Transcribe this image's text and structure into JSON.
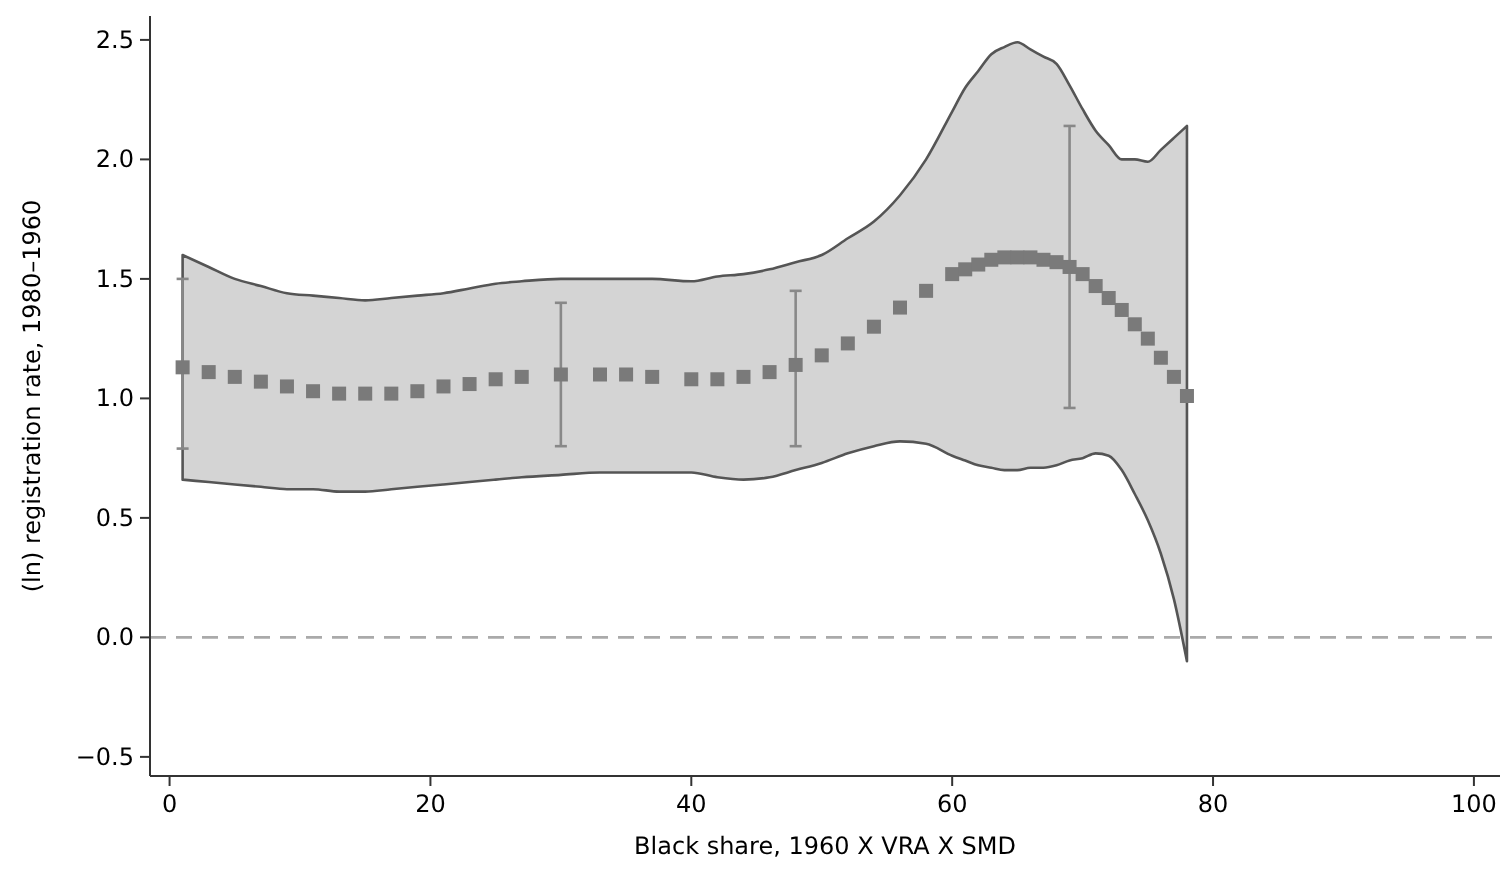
{
  "chart_data": {
    "type": "scatter",
    "xlabel": "Black share, 1960 X VRA X SMD",
    "ylabel": "(ln) registration rate, 1980–1960",
    "xlim": [
      -1.5,
      102
    ],
    "xticks": [
      0,
      20,
      40,
      60,
      80,
      100
    ],
    "ylim": [
      -0.58,
      2.6
    ],
    "yticks": [
      -0.5,
      {
        "value": 0,
        "label": "0.0"
      },
      0.5,
      {
        "value": 1,
        "label": "1.0"
      },
      1.5,
      {
        "value": 2,
        "label": "2.0"
      },
      2.5
    ],
    "series": [
      {
        "marker": "square",
        "color": "#7a7a7a",
        "x": [
          1,
          3,
          5,
          7,
          9,
          11,
          13,
          15,
          17,
          19,
          21,
          23,
          25,
          27,
          30,
          33,
          35,
          37,
          40,
          42,
          44,
          46,
          48,
          50,
          52,
          54,
          56,
          58,
          60,
          61,
          62,
          63,
          64,
          65,
          66,
          67,
          68,
          69,
          70,
          71,
          72,
          73,
          74,
          75,
          76,
          77,
          78
        ],
        "values": [
          1.13,
          1.11,
          1.09,
          1.07,
          1.05,
          1.03,
          1.02,
          1.02,
          1.02,
          1.03,
          1.05,
          1.06,
          1.08,
          1.09,
          1.1,
          1.1,
          1.1,
          1.09,
          1.08,
          1.08,
          1.09,
          1.11,
          1.14,
          1.18,
          1.23,
          1.3,
          1.38,
          1.45,
          1.52,
          1.54,
          1.56,
          1.58,
          1.59,
          1.59,
          1.59,
          1.58,
          1.57,
          1.55,
          1.52,
          1.47,
          1.42,
          1.37,
          1.31,
          1.25,
          1.17,
          1.09,
          1.01
        ],
        "lower": [
          0.66,
          0.65,
          0.64,
          0.63,
          0.62,
          0.62,
          0.61,
          0.61,
          0.62,
          0.63,
          0.64,
          0.65,
          0.66,
          0.67,
          0.68,
          0.69,
          0.69,
          0.69,
          0.69,
          0.67,
          0.66,
          0.67,
          0.7,
          0.73,
          0.77,
          0.8,
          0.82,
          0.81,
          0.76,
          0.74,
          0.72,
          0.71,
          0.7,
          0.7,
          0.71,
          0.71,
          0.72,
          0.74,
          0.75,
          0.77,
          0.76,
          0.7,
          0.6,
          0.49,
          0.35,
          0.16,
          -0.1
        ],
        "upper": [
          1.6,
          1.55,
          1.5,
          1.47,
          1.44,
          1.43,
          1.42,
          1.41,
          1.42,
          1.43,
          1.44,
          1.46,
          1.48,
          1.49,
          1.5,
          1.5,
          1.5,
          1.5,
          1.49,
          1.51,
          1.52,
          1.54,
          1.57,
          1.6,
          1.67,
          1.74,
          1.85,
          2.0,
          2.2,
          2.3,
          2.37,
          2.44,
          2.47,
          2.49,
          2.46,
          2.43,
          2.4,
          2.31,
          2.21,
          2.12,
          2.06,
          2.0,
          2.0,
          1.99,
          2.04,
          2.09,
          2.14
        ],
        "errors": [
          [
            0.79,
            1.5
          ],
          null,
          null,
          null,
          null,
          null,
          null,
          null,
          null,
          null,
          null,
          null,
          null,
          null,
          [
            0.8,
            1.4
          ],
          null,
          null,
          null,
          null,
          null,
          null,
          null,
          [
            0.8,
            1.45
          ],
          null,
          null,
          null,
          null,
          null,
          null,
          null,
          null,
          null,
          null,
          null,
          null,
          null,
          null,
          [
            0.96,
            2.14
          ],
          null,
          null,
          null,
          null,
          null,
          null,
          null,
          null,
          null
        ]
      }
    ],
    "ref_lines": [
      {
        "axis": "y",
        "value": 0,
        "color": "#aaaaaa",
        "line_style": "dashed"
      }
    ]
  }
}
